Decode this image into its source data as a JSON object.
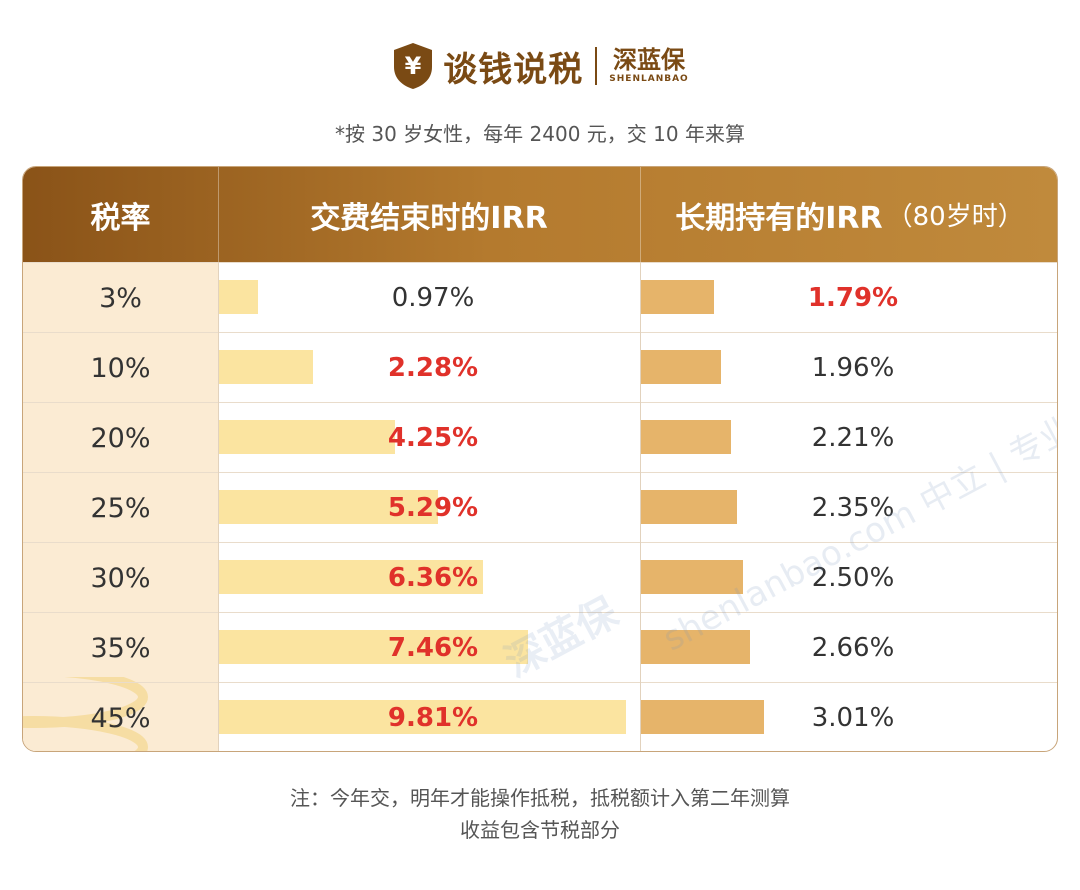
{
  "brand": {
    "symbol": "¥",
    "main": "谈钱说税",
    "sub_cn": "深蓝保",
    "sub_en": "SHENLANBAO"
  },
  "subtitle": "*按 30 岁女性，每年 2400 元，交 10 年来算",
  "table": {
    "headers": {
      "rate": "税率",
      "irr_end": "交费结束时的IRR",
      "irr_long": "长期持有的IRR",
      "irr_long_note": "（80岁时）"
    },
    "rows": [
      {
        "rate": "3%",
        "irr_end": "0.97%",
        "irr_long": "1.79%"
      },
      {
        "rate": "10%",
        "irr_end": "2.28%",
        "irr_long": "1.96%"
      },
      {
        "rate": "20%",
        "irr_end": "4.25%",
        "irr_long": "2.21%"
      },
      {
        "rate": "25%",
        "irr_end": "5.29%",
        "irr_long": "2.35%"
      },
      {
        "rate": "30%",
        "irr_end": "6.36%",
        "irr_long": "2.50%"
      },
      {
        "rate": "35%",
        "irr_end": "7.46%",
        "irr_long": "2.66%"
      },
      {
        "rate": "45%",
        "irr_end": "9.81%",
        "irr_long": "3.01%"
      }
    ]
  },
  "chart_data": {
    "type": "bar",
    "categories": [
      "3%",
      "10%",
      "20%",
      "25%",
      "30%",
      "35%",
      "45%"
    ],
    "series": [
      {
        "name": "交费结束时的IRR",
        "values": [
          0.97,
          2.28,
          4.25,
          5.29,
          6.36,
          7.46,
          9.81
        ],
        "highlight": [
          false,
          true,
          true,
          true,
          true,
          true,
          true
        ]
      },
      {
        "name": "长期持有的IRR（80岁时）",
        "values": [
          1.79,
          1.96,
          2.21,
          2.35,
          2.5,
          2.66,
          3.01
        ],
        "highlight": [
          true,
          false,
          false,
          false,
          false,
          false,
          false
        ]
      }
    ]
  },
  "watermark": {
    "brand": "深蓝保",
    "line": "shenlanbao.com 中立 | 专业 | 诚实"
  },
  "footnote": {
    "line1": "注：今年交，明年才能操作抵税，抵税额计入第二年测算",
    "line2": "收益包含节税部分"
  },
  "colors": {
    "header_start": "#8a5318",
    "header_end": "#c08a3c",
    "bar_end": "#fbe4a0",
    "bar_long": "#e6b46a",
    "highlight": "#e0312a",
    "rate_col_bg": "#fbebd3"
  }
}
